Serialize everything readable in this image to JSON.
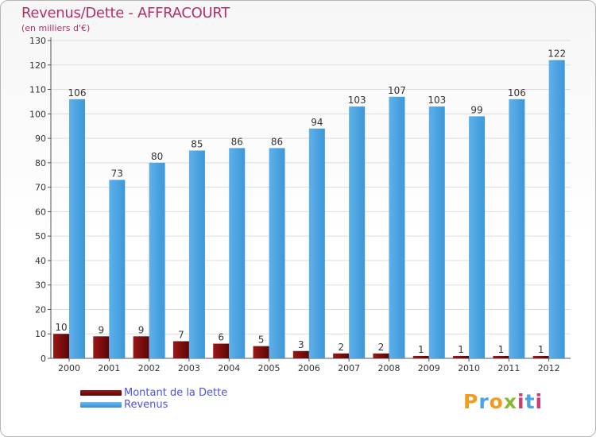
{
  "chart_data": {
    "type": "bar",
    "title": "Revenus/Dette - AFFRACOURT",
    "subtitle": "(en milliers d'€)",
    "xlabel": "",
    "ylabel": "",
    "ylim": [
      0,
      130
    ],
    "yticks": [
      0,
      10,
      20,
      30,
      40,
      50,
      60,
      70,
      80,
      90,
      100,
      110,
      120,
      130
    ],
    "grid": "horizontal",
    "categories": [
      "2000",
      "2001",
      "2002",
      "2003",
      "2004",
      "2005",
      "2006",
      "2007",
      "2008",
      "2009",
      "2010",
      "2011",
      "2012"
    ],
    "series": [
      {
        "name": "Montant de la Dette",
        "color": "#7a0c0c",
        "values": [
          10,
          9,
          9,
          7,
          6,
          5,
          3,
          2,
          2,
          1,
          1,
          1,
          1
        ]
      },
      {
        "name": "Revenus",
        "color": "#4aa3e4",
        "values": [
          106,
          73,
          80,
          85,
          86,
          86,
          94,
          103,
          107,
          103,
          99,
          106,
          122
        ]
      }
    ],
    "legend_position": "bottom-left"
  },
  "logo": {
    "text": "Proxiti",
    "colors": [
      "#f29b1e",
      "#4aa3e4",
      "#f29b1e",
      "#8ab833",
      "#d23a6a",
      "#4aa3e4",
      "#d23a6a"
    ]
  }
}
